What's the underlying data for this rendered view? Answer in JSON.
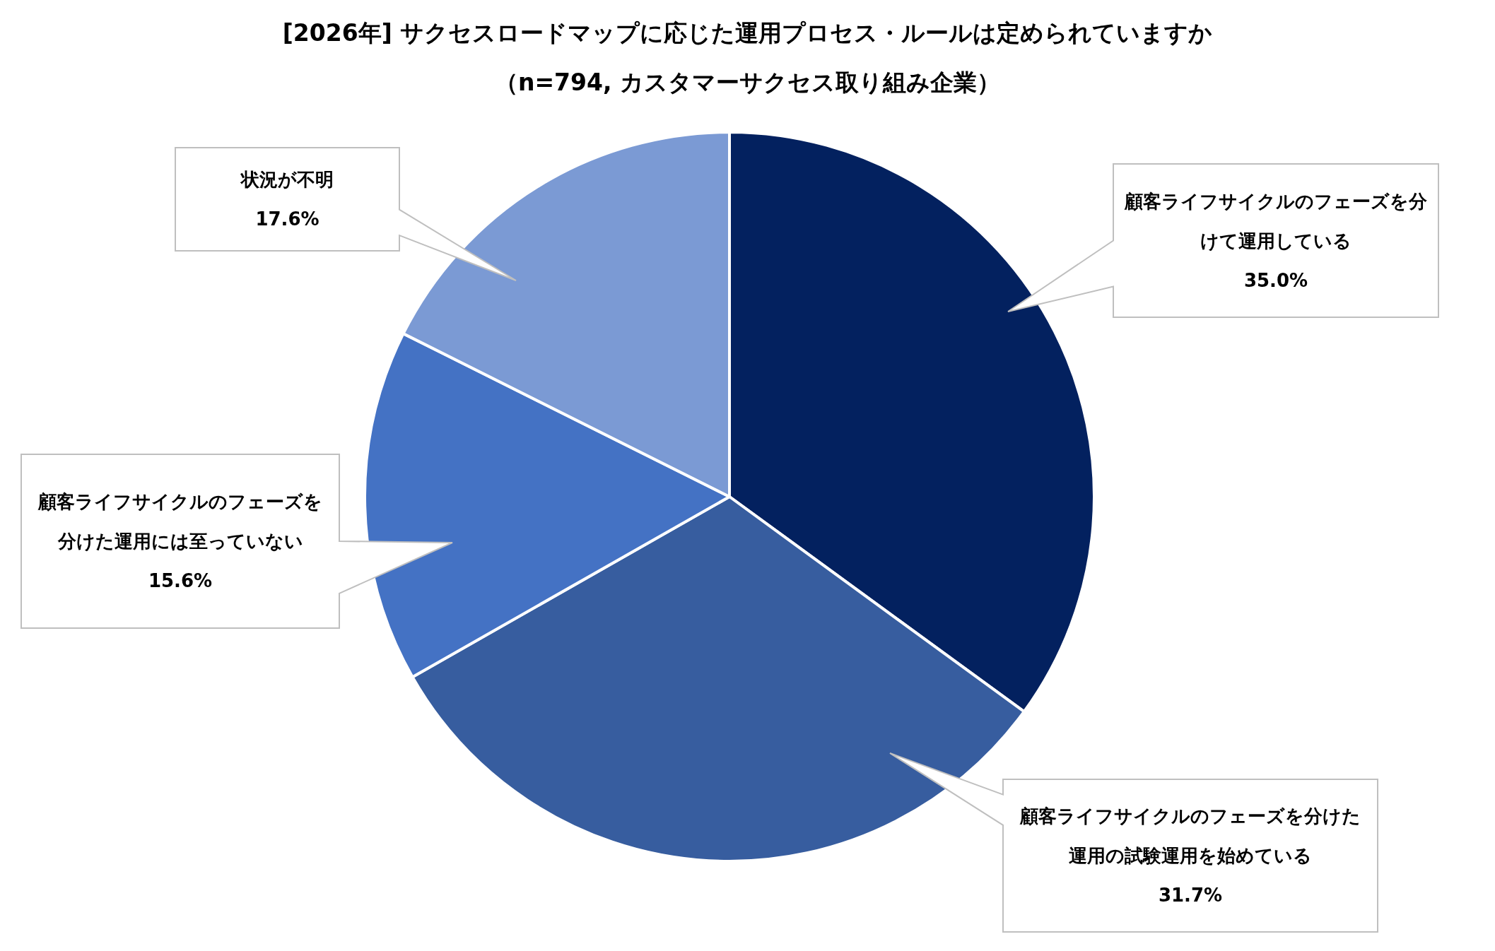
{
  "chart_data": {
    "type": "pie",
    "title": "[2026年] サクセスロードマップに応じた運用プロセス・ルールは定められていますか",
    "subtitle": "（n=794, カスタマーサクセス取り組み企業）",
    "categories": [
      "顧客ライフサイクルのフェーズを分けて運用している",
      "顧客ライフサイクルのフェーズを分けた運用の試験運用を始めている",
      "顧客ライフサイクルのフェーズを分けた運用には至っていない",
      "状況が不明"
    ],
    "values": [
      35.0,
      31.7,
      15.6,
      17.6
    ],
    "colors": [
      "#03215f",
      "#375d9f",
      "#4472c4",
      "#7b9ad4"
    ],
    "value_labels": [
      "35.0%",
      "31.7%",
      "15.6%",
      "17.6%"
    ]
  }
}
